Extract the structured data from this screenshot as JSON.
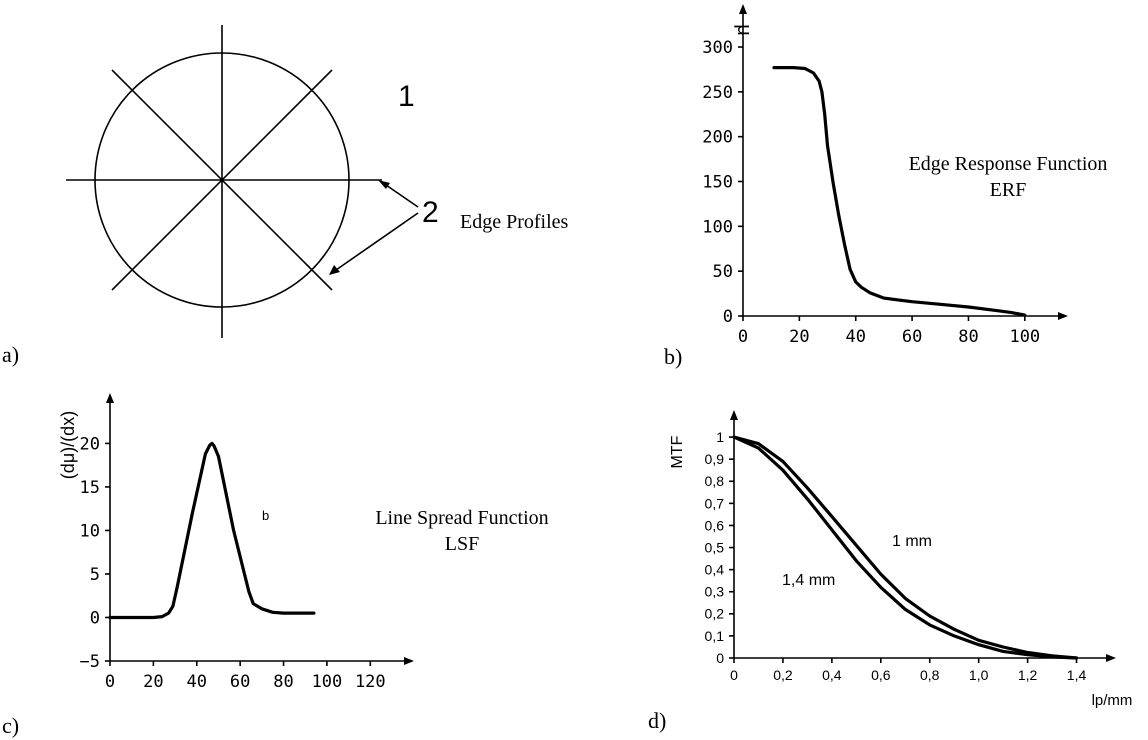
{
  "panels": {
    "a": {
      "tag": "a)",
      "number_1": "1",
      "number_2": "2",
      "annotation": "Edge Profiles"
    },
    "b": {
      "tag": "b)",
      "annotation_line1": "Edge Response Function",
      "annotation_line2": "ERF"
    },
    "c": {
      "tag": "c)",
      "annotation_line1": "Line Spread Function",
      "annotation_line2": "LSF",
      "marker": "b"
    },
    "d": {
      "tag": "d)"
    }
  },
  "chart_data": [
    {
      "panel": "b",
      "type": "line",
      "ylabel": "μ",
      "xlim": [
        0,
        110
      ],
      "ylim": [
        0,
        300
      ],
      "xticks": [
        "0",
        "20",
        "40",
        "60",
        "80",
        "100"
      ],
      "yticks": [
        "0",
        "50",
        "100",
        "150",
        "200",
        "250",
        "300"
      ],
      "series": [
        {
          "x": [
            11,
            18,
            22,
            25,
            27,
            28,
            29,
            30,
            32,
            34,
            36,
            38,
            40,
            42,
            45,
            50,
            55,
            60,
            70,
            80,
            90,
            95,
            100
          ],
          "y": [
            277,
            277,
            276,
            271,
            262,
            250,
            225,
            190,
            148,
            112,
            80,
            52,
            38,
            32,
            26,
            20,
            18,
            16,
            13,
            10,
            6,
            4,
            1
          ]
        }
      ]
    },
    {
      "panel": "c",
      "type": "line",
      "ylabel": "(dμ)/(dx)",
      "xlim": [
        0,
        130
      ],
      "ylim": [
        -5,
        22
      ],
      "xticks": [
        "0",
        "20",
        "40",
        "60",
        "80",
        "100",
        "120"
      ],
      "yticks": [
        "−5",
        "0",
        "5",
        "10",
        "15",
        "20"
      ],
      "series": [
        {
          "x": [
            0,
            20,
            24,
            27,
            29,
            31,
            38,
            44,
            46,
            47,
            48,
            50,
            57,
            64,
            66,
            70,
            75,
            80,
            94
          ],
          "y": [
            0,
            0,
            0.1,
            0.5,
            1.3,
            3.5,
            12,
            18.8,
            19.8,
            20,
            19.7,
            18.5,
            10,
            3,
            1.6,
            1,
            0.6,
            0.5,
            0.5
          ]
        }
      ]
    },
    {
      "panel": "d",
      "type": "line",
      "ylabel": "MTF",
      "xlabel": "lp/mm",
      "xlim": [
        0,
        1.5
      ],
      "ylim": [
        0,
        1.1
      ],
      "xticks": [
        "0",
        "0,2",
        "0,4",
        "0,6",
        "0,8",
        "1,0",
        "1,2",
        "1,4"
      ],
      "yticks": [
        "0",
        "0,1",
        "0,2",
        "0,3",
        "0,4",
        "0,5",
        "0,6",
        "0,7",
        "0,8",
        "0,9",
        "1"
      ],
      "series": [
        {
          "name": "1 mm",
          "x": [
            0,
            0.1,
            0.2,
            0.3,
            0.4,
            0.5,
            0.6,
            0.7,
            0.8,
            0.9,
            1.0,
            1.1,
            1.2,
            1.3,
            1.4
          ],
          "y": [
            1,
            0.97,
            0.89,
            0.77,
            0.64,
            0.51,
            0.38,
            0.27,
            0.19,
            0.13,
            0.08,
            0.05,
            0.025,
            0.01,
            0
          ]
        },
        {
          "name": "1,4 mm",
          "x": [
            0,
            0.1,
            0.2,
            0.3,
            0.4,
            0.5,
            0.6,
            0.7,
            0.8,
            0.9,
            1.0,
            1.1,
            1.2,
            1.3,
            1.4
          ],
          "y": [
            1,
            0.95,
            0.85,
            0.72,
            0.58,
            0.44,
            0.32,
            0.22,
            0.15,
            0.1,
            0.06,
            0.03,
            0.015,
            0.005,
            0
          ]
        }
      ]
    }
  ]
}
